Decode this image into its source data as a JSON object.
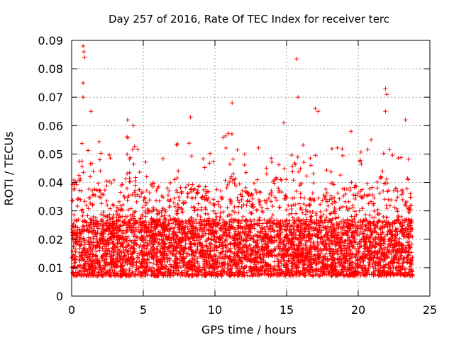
{
  "chart_data": {
    "type": "scatter",
    "title": "Day 257 of 2016, Rate Of TEC Index for receiver terc",
    "xlabel": "GPS time / hours",
    "ylabel": "ROTI / TECUs",
    "xlim": [
      0,
      25
    ],
    "ylim": [
      0,
      0.09
    ],
    "x_ticks": [
      "0",
      "5",
      "10",
      "15",
      "20",
      "25"
    ],
    "y_ticks": [
      "0",
      "0.01",
      "0.02",
      "0.03",
      "0.04",
      "0.05",
      "0.06",
      "0.07",
      "0.08",
      "0.09"
    ],
    "grid": true,
    "marker": "+",
    "color": "#ff0000",
    "data_extent": {
      "x_min": 0.0,
      "x_max": 23.8,
      "y_min": 0.003,
      "y_max": 0.088
    },
    "series": [
      {
        "name": "ROTI",
        "points_description": "dense cloud of '+' markers, most between 0.005 and 0.03 TECU across 0-23.8 h",
        "peaks": [
          {
            "x": 0.8,
            "y": 0.088
          },
          {
            "x": 0.85,
            "y": 0.086
          },
          {
            "x": 0.9,
            "y": 0.084
          },
          {
            "x": 0.8,
            "y": 0.075
          },
          {
            "x": 0.8,
            "y": 0.07
          },
          {
            "x": 1.35,
            "y": 0.065
          },
          {
            "x": 3.9,
            "y": 0.062
          },
          {
            "x": 4.3,
            "y": 0.06
          },
          {
            "x": 8.3,
            "y": 0.063
          },
          {
            "x": 11.2,
            "y": 0.068
          },
          {
            "x": 14.8,
            "y": 0.061
          },
          {
            "x": 15.7,
            "y": 0.0835
          },
          {
            "x": 15.8,
            "y": 0.07
          },
          {
            "x": 17.0,
            "y": 0.066
          },
          {
            "x": 17.2,
            "y": 0.065
          },
          {
            "x": 19.5,
            "y": 0.058
          },
          {
            "x": 20.9,
            "y": 0.055
          },
          {
            "x": 21.9,
            "y": 0.073
          },
          {
            "x": 22.0,
            "y": 0.071
          },
          {
            "x": 21.9,
            "y": 0.065
          },
          {
            "x": 23.3,
            "y": 0.062
          }
        ]
      }
    ]
  }
}
